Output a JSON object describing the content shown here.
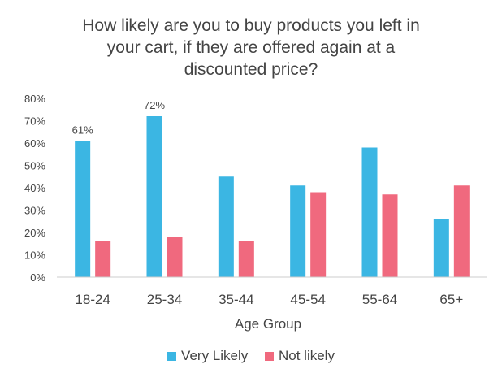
{
  "chart_data": {
    "type": "bar",
    "title_lines": [
      "How likely are you to buy products you left in",
      "your cart, if they are offered again at a",
      "discounted price?"
    ],
    "xlabel": "Age Group",
    "ylabel": "",
    "categories": [
      "18-24",
      "25-34",
      "35-44",
      "45-54",
      "55-64",
      "65+"
    ],
    "y_ticks": [
      "0%",
      "10%",
      "20%",
      "30%",
      "40%",
      "50%",
      "60%",
      "70%",
      "80%"
    ],
    "ylim": [
      0,
      80
    ],
    "grid": false,
    "legend_position": "bottom",
    "series": [
      {
        "name": "Very Likely",
        "color": "#3bb6e3",
        "values": [
          61,
          72,
          45,
          41,
          58,
          26
        ],
        "data_labels": [
          "61%",
          "72%",
          "",
          "",
          "",
          ""
        ]
      },
      {
        "name": "Not likely",
        "color": "#f0697e",
        "values": [
          16,
          18,
          16,
          38,
          37,
          41
        ],
        "data_labels": [
          "",
          "",
          "",
          "",
          "",
          ""
        ]
      }
    ]
  }
}
